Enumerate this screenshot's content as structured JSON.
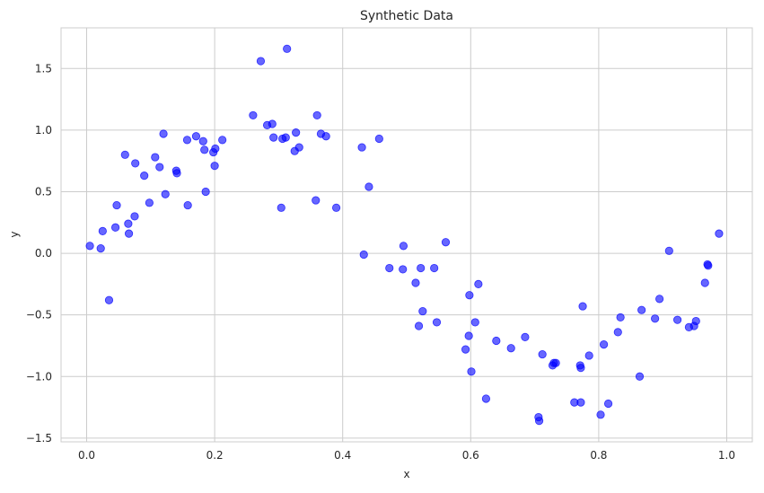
{
  "chart_data": {
    "type": "scatter",
    "title": "Synthetic Data",
    "xlabel": "x",
    "ylabel": "y",
    "xlim": [
      -0.04,
      1.04
    ],
    "ylim": [
      -1.53,
      1.83
    ],
    "grid": true,
    "marker_color": "#0000ff",
    "marker_alpha": 0.6,
    "x_ticks": [
      0.0,
      0.2,
      0.4,
      0.6,
      0.8,
      1.0
    ],
    "x_tick_labels": [
      "0.0",
      "0.2",
      "0.4",
      "0.6",
      "0.8",
      "1.0"
    ],
    "y_ticks": [
      -1.5,
      -1.0,
      -0.5,
      0.0,
      0.5,
      1.0,
      1.5
    ],
    "y_tick_labels": [
      "−1.5",
      "−1.0",
      "−0.5",
      "0.0",
      "0.5",
      "1.0",
      "1.5"
    ],
    "points": [
      [
        0.005,
        0.06
      ],
      [
        0.022,
        0.04
      ],
      [
        0.025,
        0.18
      ],
      [
        0.035,
        -0.38
      ],
      [
        0.045,
        0.21
      ],
      [
        0.047,
        0.39
      ],
      [
        0.06,
        0.8
      ],
      [
        0.065,
        0.24
      ],
      [
        0.066,
        0.16
      ],
      [
        0.075,
        0.3
      ],
      [
        0.076,
        0.73
      ],
      [
        0.09,
        0.63
      ],
      [
        0.098,
        0.41
      ],
      [
        0.107,
        0.78
      ],
      [
        0.114,
        0.7
      ],
      [
        0.12,
        0.97
      ],
      [
        0.123,
        0.48
      ],
      [
        0.14,
        0.67
      ],
      [
        0.141,
        0.65
      ],
      [
        0.157,
        0.92
      ],
      [
        0.158,
        0.39
      ],
      [
        0.171,
        0.95
      ],
      [
        0.182,
        0.91
      ],
      [
        0.184,
        0.84
      ],
      [
        0.186,
        0.5
      ],
      [
        0.198,
        0.82
      ],
      [
        0.2,
        0.71
      ],
      [
        0.201,
        0.85
      ],
      [
        0.212,
        0.92
      ],
      [
        0.26,
        1.12
      ],
      [
        0.272,
        1.56
      ],
      [
        0.282,
        1.04
      ],
      [
        0.29,
        1.05
      ],
      [
        0.292,
        0.94
      ],
      [
        0.304,
        0.37
      ],
      [
        0.306,
        0.93
      ],
      [
        0.311,
        0.94
      ],
      [
        0.313,
        1.66
      ],
      [
        0.325,
        0.83
      ],
      [
        0.327,
        0.98
      ],
      [
        0.332,
        0.86
      ],
      [
        0.358,
        0.43
      ],
      [
        0.36,
        1.12
      ],
      [
        0.366,
        0.97
      ],
      [
        0.374,
        0.95
      ],
      [
        0.39,
        0.37
      ],
      [
        0.43,
        0.86
      ],
      [
        0.433,
        -0.01
      ],
      [
        0.441,
        0.54
      ],
      [
        0.457,
        0.93
      ],
      [
        0.473,
        -0.12
      ],
      [
        0.494,
        -0.13
      ],
      [
        0.495,
        0.06
      ],
      [
        0.514,
        -0.24
      ],
      [
        0.519,
        -0.59
      ],
      [
        0.522,
        -0.12
      ],
      [
        0.525,
        -0.47
      ],
      [
        0.543,
        -0.12
      ],
      [
        0.547,
        -0.56
      ],
      [
        0.561,
        0.09
      ],
      [
        0.592,
        -0.78
      ],
      [
        0.597,
        -0.67
      ],
      [
        0.598,
        -0.34
      ],
      [
        0.601,
        -0.96
      ],
      [
        0.607,
        -0.56
      ],
      [
        0.612,
        -0.25
      ],
      [
        0.624,
        -1.18
      ],
      [
        0.64,
        -0.71
      ],
      [
        0.663,
        -0.77
      ],
      [
        0.685,
        -0.68
      ],
      [
        0.706,
        -1.33
      ],
      [
        0.707,
        -1.36
      ],
      [
        0.712,
        -0.82
      ],
      [
        0.728,
        -0.91
      ],
      [
        0.73,
        -0.89
      ],
      [
        0.733,
        -0.89
      ],
      [
        0.762,
        -1.21
      ],
      [
        0.771,
        -0.91
      ],
      [
        0.772,
        -1.21
      ],
      [
        0.772,
        -0.93
      ],
      [
        0.775,
        -0.43
      ],
      [
        0.785,
        -0.83
      ],
      [
        0.803,
        -1.31
      ],
      [
        0.808,
        -0.74
      ],
      [
        0.815,
        -1.22
      ],
      [
        0.83,
        -0.64
      ],
      [
        0.834,
        -0.52
      ],
      [
        0.864,
        -1.0
      ],
      [
        0.867,
        -0.46
      ],
      [
        0.888,
        -0.53
      ],
      [
        0.895,
        -0.37
      ],
      [
        0.91,
        0.02
      ],
      [
        0.923,
        -0.54
      ],
      [
        0.941,
        -0.6
      ],
      [
        0.949,
        -0.59
      ],
      [
        0.952,
        -0.55
      ],
      [
        0.966,
        -0.24
      ],
      [
        0.97,
        -0.09
      ],
      [
        0.971,
        -0.1
      ],
      [
        0.988,
        0.16
      ]
    ]
  }
}
